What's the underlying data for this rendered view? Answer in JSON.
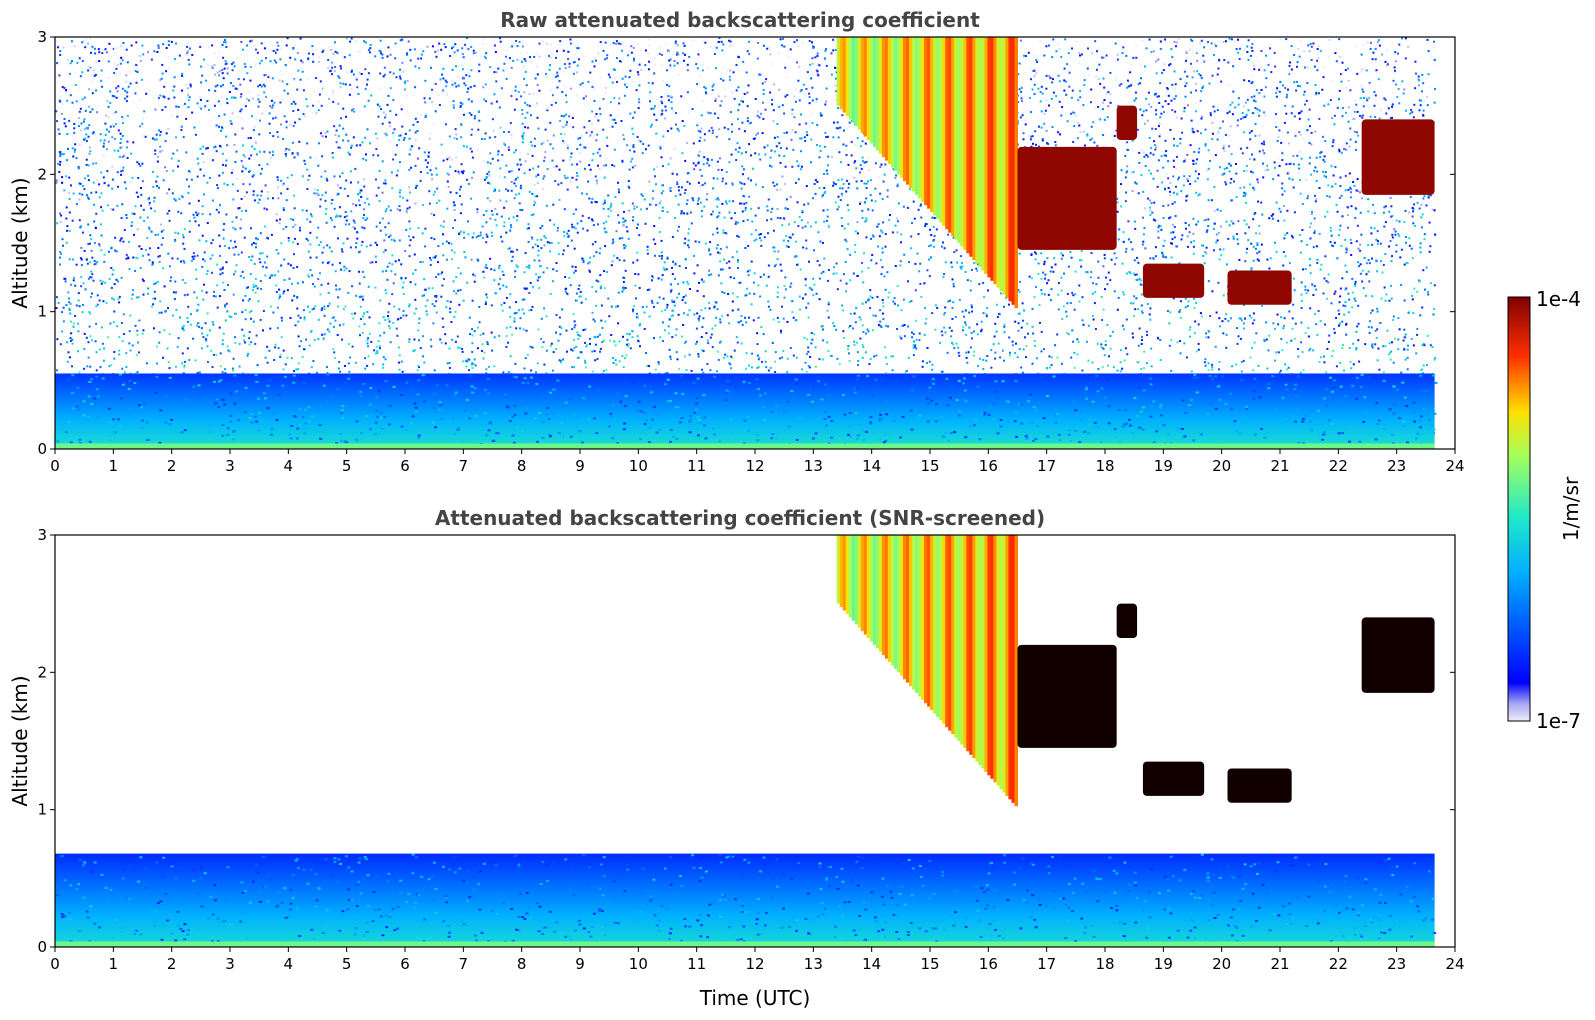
{
  "chart_data": [
    {
      "type": "heatmap",
      "title": "Raw attenuated backscattering coefficient",
      "xlabel": "",
      "ylabel": "Altitude (km)",
      "xlim": [
        0,
        24
      ],
      "ylim": [
        0,
        3
      ],
      "x_ticks": [
        "0",
        "1",
        "2",
        "3",
        "4",
        "5",
        "6",
        "7",
        "8",
        "9",
        "10",
        "11",
        "12",
        "13",
        "14",
        "15",
        "16",
        "17",
        "18",
        "19",
        "20",
        "21",
        "22",
        "23",
        "24"
      ],
      "y_ticks": [
        "0",
        "1",
        "2",
        "3"
      ],
      "data_end_time": 23.65,
      "features": [
        {
          "kind": "boundary_layer",
          "t_start": 0,
          "t_end": 23.65,
          "alt_bottom": 0.0,
          "alt_top": 0.55,
          "log_value": -6.1
        },
        {
          "kind": "surface",
          "t_start": 0,
          "t_end": 23.65,
          "alt_bottom": 0.0,
          "alt_top": 0.04,
          "log_value": -5.3
        },
        {
          "kind": "cirrus_fallstreak",
          "t_start": 13.4,
          "t_end": 16.5,
          "alt_bottom": 0.95,
          "alt_top": 3.0,
          "log_value": -4.7
        },
        {
          "kind": "cloud",
          "t_start": 16.5,
          "t_end": 18.2,
          "alt_bottom": 1.45,
          "alt_top": 2.2,
          "log_value": -4.05
        },
        {
          "kind": "cloud",
          "t_start": 18.2,
          "t_end": 18.55,
          "alt_bottom": 2.25,
          "alt_top": 2.5,
          "log_value": -4.05
        },
        {
          "kind": "cloud",
          "t_start": 18.65,
          "t_end": 19.7,
          "alt_bottom": 1.1,
          "alt_top": 1.35,
          "log_value": -4.05
        },
        {
          "kind": "cloud",
          "t_start": 20.1,
          "t_end": 21.2,
          "alt_bottom": 1.05,
          "alt_top": 1.3,
          "log_value": -4.05
        },
        {
          "kind": "cloud",
          "t_start": 22.4,
          "t_end": 23.65,
          "alt_bottom": 1.85,
          "alt_top": 2.4,
          "log_value": -4.05
        }
      ]
    },
    {
      "type": "heatmap",
      "title": "Attenuated backscattering coefficient (SNR-screened)",
      "xlabel": "Time (UTC)",
      "ylabel": "Altitude (km)",
      "xlim": [
        0,
        24
      ],
      "ylim": [
        0,
        3
      ],
      "x_ticks": [
        "0",
        "1",
        "2",
        "3",
        "4",
        "5",
        "6",
        "7",
        "8",
        "9",
        "10",
        "11",
        "12",
        "13",
        "14",
        "15",
        "16",
        "17",
        "18",
        "19",
        "20",
        "21",
        "22",
        "23",
        "24"
      ],
      "y_ticks": [
        "0",
        "1",
        "2",
        "3"
      ],
      "data_end_time": 23.65,
      "features": [
        {
          "kind": "boundary_layer",
          "t_start": 0,
          "t_end": 23.65,
          "alt_bottom": 0.0,
          "alt_top": 0.68,
          "log_value": -6.15
        },
        {
          "kind": "surface",
          "t_start": 0,
          "t_end": 23.65,
          "alt_bottom": 0.0,
          "alt_top": 0.04,
          "log_value": -5.3
        },
        {
          "kind": "cirrus_fallstreak",
          "t_start": 13.4,
          "t_end": 16.5,
          "alt_bottom": 0.95,
          "alt_top": 3.0,
          "log_value": -4.7
        },
        {
          "kind": "cloud",
          "t_start": 16.5,
          "t_end": 18.2,
          "alt_bottom": 1.45,
          "alt_top": 2.2,
          "log_value": -3.8
        },
        {
          "kind": "cloud",
          "t_start": 18.2,
          "t_end": 18.55,
          "alt_bottom": 2.25,
          "alt_top": 2.5,
          "log_value": -3.8
        },
        {
          "kind": "cloud",
          "t_start": 18.65,
          "t_end": 19.7,
          "alt_bottom": 1.1,
          "alt_top": 1.35,
          "log_value": -3.8
        },
        {
          "kind": "cloud",
          "t_start": 20.1,
          "t_end": 21.2,
          "alt_bottom": 1.05,
          "alt_top": 1.3,
          "log_value": -3.8
        },
        {
          "kind": "cloud",
          "t_start": 22.4,
          "t_end": 23.65,
          "alt_bottom": 1.85,
          "alt_top": 2.4,
          "log_value": -3.8
        }
      ]
    }
  ],
  "colorbar": {
    "label": "1/m/sr",
    "max_label": "1e-4",
    "min_label": "1e-7",
    "colormap": "jet",
    "log_min": -7,
    "log_max": -4
  }
}
